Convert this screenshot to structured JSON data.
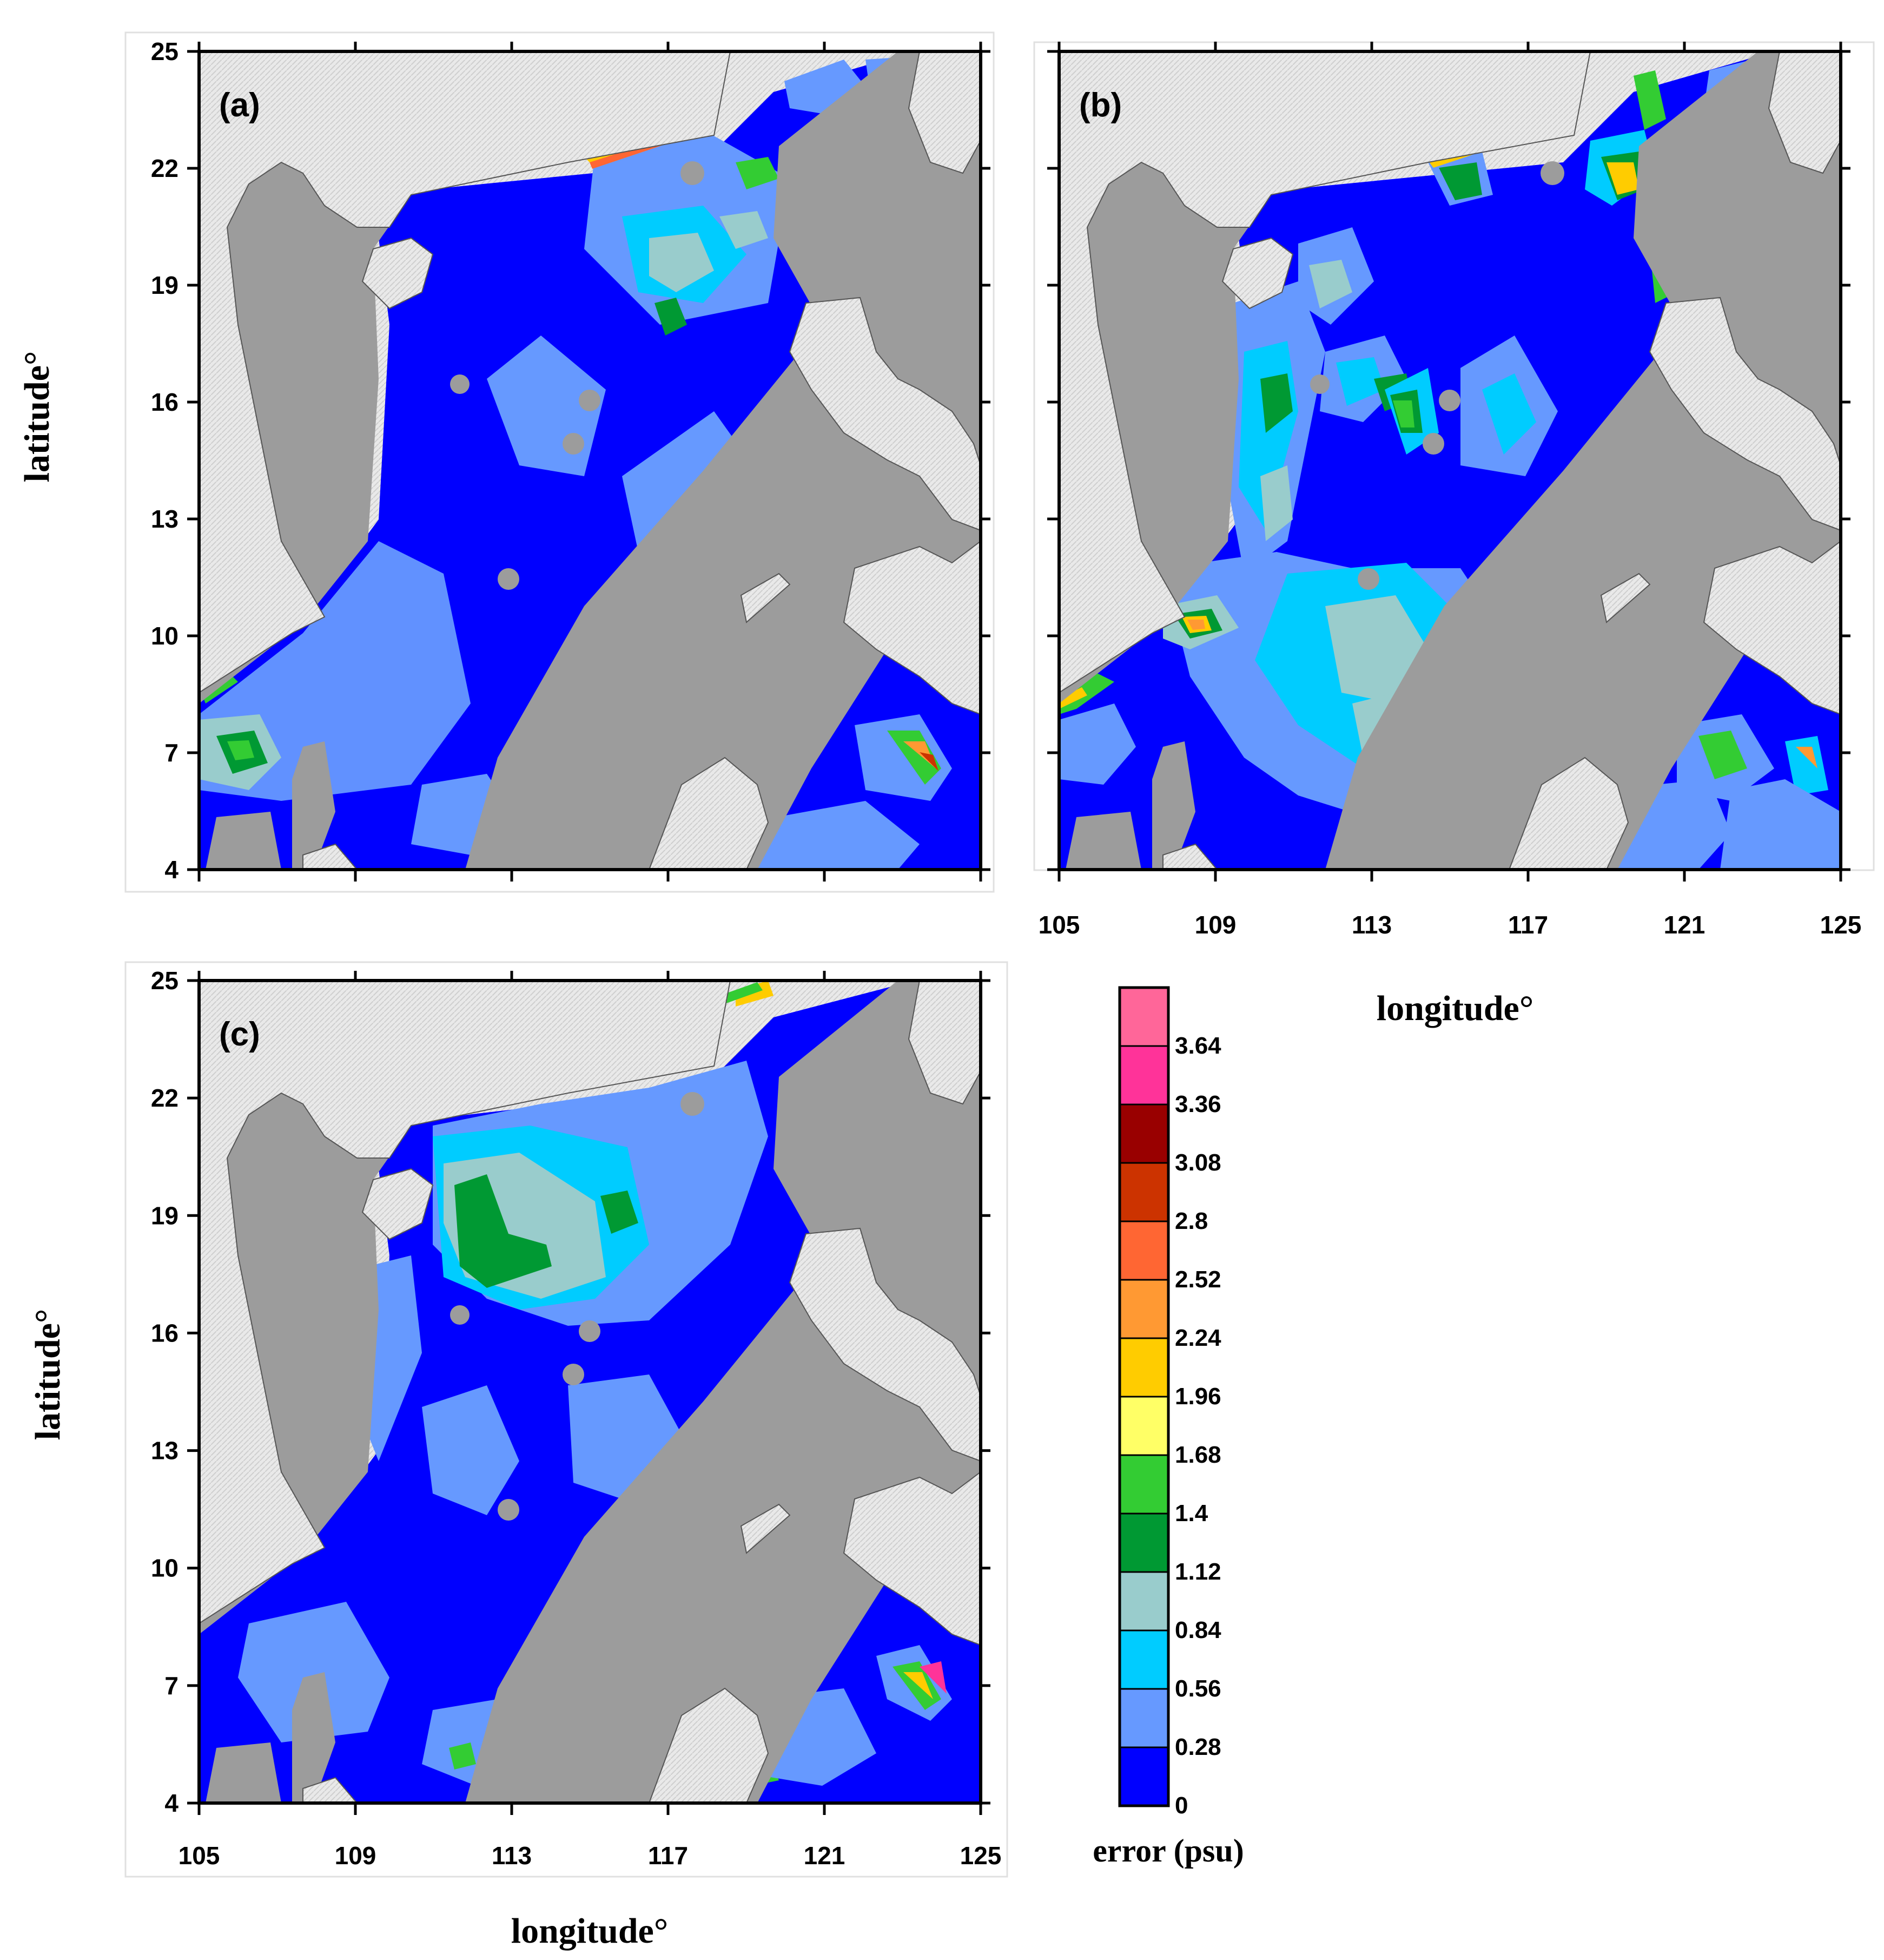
{
  "figure": {
    "type": "map-panels",
    "x_ticks": [
      "105",
      "109",
      "113",
      "117",
      "121",
      "125"
    ],
    "y_ticks": [
      "25",
      "22",
      "19",
      "16",
      "13",
      "10",
      "7",
      "4"
    ],
    "x_label": "longitude°",
    "y_label": "latitude°",
    "panels": [
      {
        "id": "a",
        "label": "(a)",
        "show_x_ticklabels": false,
        "show_y_ticklabels": true
      },
      {
        "id": "b",
        "label": "(b)",
        "show_x_ticklabels": true,
        "show_y_ticklabels": false
      },
      {
        "id": "c",
        "label": "(c)",
        "show_x_ticklabels": true,
        "show_y_ticklabels": true
      }
    ],
    "land_color": "#e6e6e6",
    "shelf_mask_color": "#9c9c9c"
  },
  "colorbar": {
    "title": "error (psu)",
    "levels": [
      "0",
      "0.28",
      "0.56",
      "0.84",
      "1.12",
      "1.4",
      "1.68",
      "1.96",
      "2.24",
      "2.52",
      "2.8",
      "3.08",
      "3.36",
      "3.64"
    ],
    "colors": [
      "#0000ff",
      "#6699ff",
      "#00ccff",
      "#99cccc",
      "#009933",
      "#33cc33",
      "#ffff66",
      "#ffcc00",
      "#ff9933",
      "#ff6633",
      "#cc3300",
      "#990000",
      "#ff3399",
      "#ff6699"
    ]
  }
}
